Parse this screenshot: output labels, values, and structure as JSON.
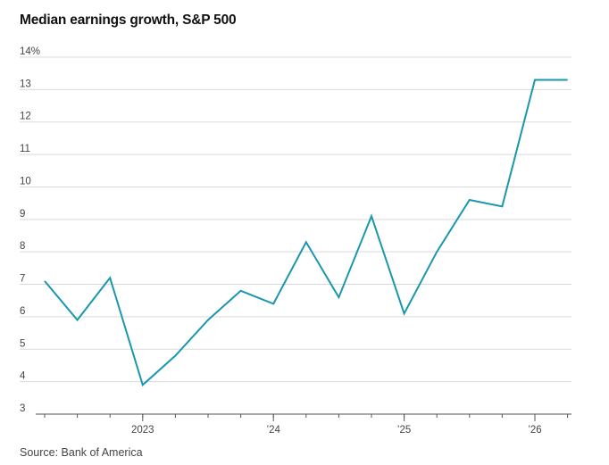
{
  "title": "Median earnings growth, S&P 500",
  "source": "Source: Bank of America",
  "colors": {
    "line": "#1a97ad",
    "grid": "#d9d9d9",
    "axis": "#555555"
  },
  "chart_data": {
    "type": "line",
    "title": "Median earnings growth, S&P 500",
    "xlabel": "",
    "ylabel": "",
    "ylim": [
      3,
      14
    ],
    "y_unit_suffix": "%",
    "yticks": [
      3,
      4,
      5,
      6,
      7,
      8,
      9,
      10,
      11,
      12,
      13,
      14
    ],
    "ytick_labels": [
      "3",
      "4",
      "5",
      "6",
      "7",
      "8",
      "9",
      "10",
      "11",
      "12",
      "13",
      "14%"
    ],
    "x_tick_count": 17,
    "x_labels": [
      {
        "index": 3,
        "label": "2023"
      },
      {
        "index": 7,
        "label": "’24"
      },
      {
        "index": 11,
        "label": "’25"
      },
      {
        "index": 15,
        "label": "’26"
      }
    ],
    "grid": true,
    "series": [
      {
        "values": [
          7.1,
          5.9,
          7.2,
          3.9,
          4.8,
          5.9,
          6.8,
          6.4,
          8.3,
          6.6,
          9.1,
          6.1,
          8.0,
          9.6,
          9.4,
          13.3,
          13.3
        ]
      }
    ]
  }
}
